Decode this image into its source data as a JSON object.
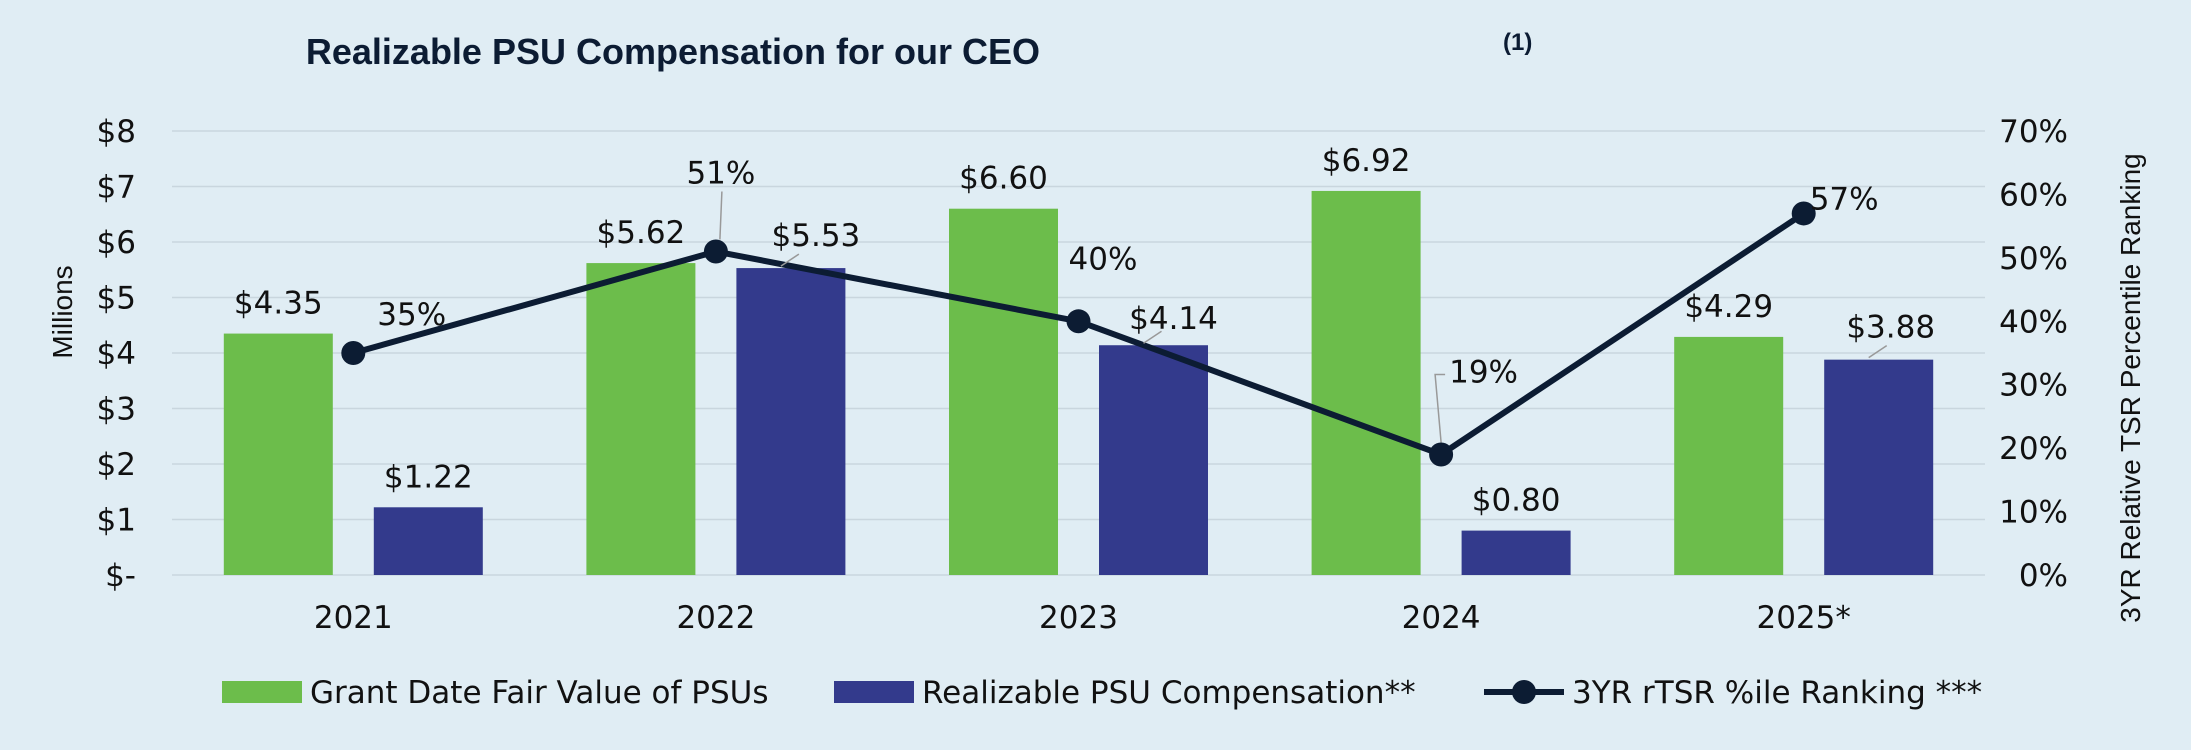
{
  "chart_data": {
    "type": "bar",
    "title": "Realizable PSU Compensation for our CEO",
    "title_superscript": "(1)",
    "categories": [
      "2021",
      "2022",
      "2023",
      "2024",
      "2025*"
    ],
    "series": [
      {
        "name": "Grant Date Fair Value of PSUs",
        "kind": "bar",
        "axis": "left",
        "color": "#6cbd4b",
        "values": [
          4.35,
          5.62,
          6.6,
          6.92,
          4.29
        ],
        "labels": [
          "$4.35",
          "$5.62",
          "$6.60",
          "$6.92",
          "$4.29"
        ]
      },
      {
        "name": "Realizable PSU Compensation**",
        "kind": "bar",
        "axis": "left",
        "color": "#333a8c",
        "values": [
          1.22,
          5.53,
          4.14,
          0.8,
          3.88
        ],
        "labels": [
          "$1.22",
          "$5.53",
          "$4.14",
          "$0.80",
          "$3.88"
        ]
      },
      {
        "name": "3YR rTSR %ile Ranking ***",
        "kind": "line",
        "axis": "right",
        "color": "#0c1c33",
        "values": [
          35,
          51,
          40,
          19,
          57
        ],
        "labels": [
          "35%",
          "51%",
          "40%",
          "19%",
          "57%"
        ]
      }
    ],
    "ylabel": "Millions",
    "ylabel_right": "3YR Relative TSR Percentile Ranking",
    "ylim": [
      0,
      8
    ],
    "ylim_right": [
      0,
      70
    ],
    "yticks": [
      "$-",
      "$1",
      "$2",
      "$3",
      "$4",
      "$5",
      "$6",
      "$7",
      "$8"
    ],
    "yticks_right": [
      "0%",
      "10%",
      "20%",
      "30%",
      "40%",
      "50%",
      "60%",
      "70%"
    ],
    "grid": true,
    "legend_position": "bottom"
  }
}
